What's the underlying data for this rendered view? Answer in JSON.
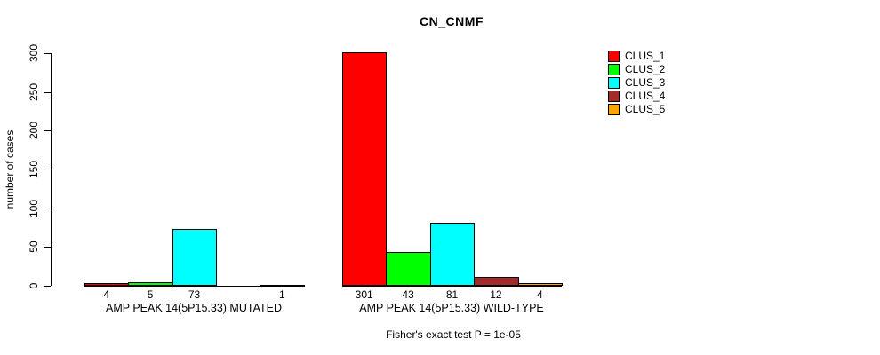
{
  "chart_data": {
    "type": "bar",
    "title": "CN_CNMF",
    "ylabel": "number of cases",
    "xlabel": "",
    "ylim": [
      0,
      300
    ],
    "yticks": [
      0,
      50,
      100,
      150,
      200,
      250,
      300
    ],
    "grid": false,
    "legend_position": "right",
    "axis_color": "#000000",
    "bar_border_color": "#000000",
    "legend": [
      {
        "label": "CLUS_1",
        "color": "#FF0000"
      },
      {
        "label": "CLUS_2",
        "color": "#00FF00"
      },
      {
        "label": "CLUS_3",
        "color": "#00FFFF"
      },
      {
        "label": "CLUS_4",
        "color": "#A52A2A"
      },
      {
        "label": "CLUS_5",
        "color": "#FFA500"
      }
    ],
    "groups": [
      {
        "key": "mutated",
        "label": "AMP PEAK 14(5P15.33) MUTATED",
        "values": [
          4,
          5,
          73,
          0,
          1
        ],
        "bar_labels": [
          "4",
          "5",
          "73",
          "",
          "1"
        ]
      },
      {
        "key": "wild-type",
        "label": "AMP PEAK 14(5P15.33) WILD-TYPE",
        "values": [
          301,
          43,
          81,
          12,
          4
        ],
        "bar_labels": [
          "301",
          "43",
          "81",
          "12",
          "4"
        ]
      }
    ],
    "annotation": "Fisher's exact test P = 1e-05"
  }
}
